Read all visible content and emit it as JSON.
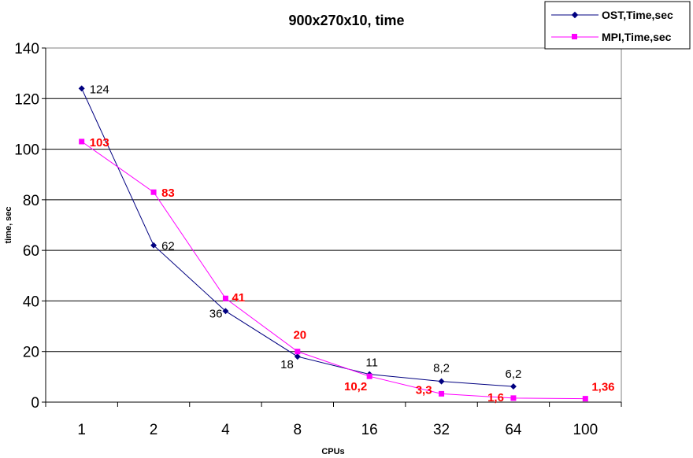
{
  "chart_data": {
    "type": "line",
    "title": "900x270x10, time",
    "xlabel": "CPUs",
    "ylabel": "time, sec",
    "categories": [
      "1",
      "2",
      "4",
      "8",
      "16",
      "32",
      "64",
      "100"
    ],
    "ylim": [
      0,
      140
    ],
    "yticks": [
      "0",
      "20",
      "40",
      "60",
      "80",
      "100",
      "120",
      "140"
    ],
    "grid": true,
    "legend_position": "top-right",
    "series": [
      {
        "name": "OST,Time,sec",
        "color": "#000080",
        "marker": "diamond",
        "values": [
          124,
          62,
          36,
          18,
          11,
          8.2,
          6.2,
          null
        ],
        "labels": [
          "124",
          "62",
          "36",
          "18",
          "11",
          "8,2",
          "6,2",
          ""
        ]
      },
      {
        "name": "MPI,Time,sec",
        "color": "#ff00ff",
        "label_color": "#ff0000",
        "marker": "square",
        "values": [
          103,
          83,
          41,
          20,
          10.2,
          3.3,
          1.6,
          1.36
        ],
        "labels": [
          "103",
          "83",
          "41",
          "20",
          "10,2",
          "3,3",
          "1,6",
          "1,36"
        ]
      }
    ]
  }
}
